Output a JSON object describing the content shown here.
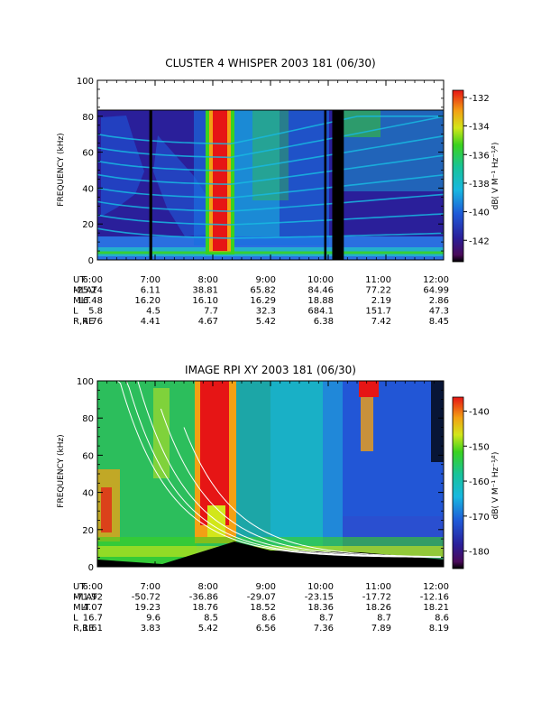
{
  "chart_data": [
    {
      "type": "heatmap",
      "title": "CLUSTER 4 WHISPER 2003 181 (06/30)",
      "ylabel": "FREQUENCY (kHz)",
      "ylim": [
        0,
        100
      ],
      "yticks": [
        "0",
        "20",
        "40",
        "60",
        "80",
        "100"
      ],
      "data_max_frequency": 80,
      "colorbar": {
        "label": "dB( V M⁻¹ Hz⁻¹⁄²)",
        "range": [
          -143.5,
          -131.5
        ],
        "ticks": [
          "-132",
          "-134",
          "-136",
          "-138",
          "-140",
          "-142"
        ],
        "tick_values": [
          -132,
          -134,
          -136,
          -138,
          -140,
          -142
        ]
      },
      "ephemeris_labels": [
        "UT",
        "MLAT",
        "MLT",
        "L",
        "R,RE"
      ],
      "ephemeris": [
        [
          "6:00",
          "-25.24",
          "16.48",
          "5.8",
          "4.76"
        ],
        [
          "7:00",
          "6.11",
          "16.20",
          "4.5",
          "4.41"
        ],
        [
          "8:00",
          "38.81",
          "16.10",
          "7.7",
          "4.67"
        ],
        [
          "9:00",
          "65.82",
          "16.29",
          "32.3",
          "5.42"
        ],
        [
          "10:00",
          "84.46",
          "18.88",
          "684.1",
          "6.38"
        ],
        [
          "11:00",
          "77.22",
          "2.19",
          "151.7",
          "7.42"
        ],
        [
          "12:00",
          "64.99",
          "2.86",
          "47.3",
          "8.45"
        ]
      ],
      "data_gaps_ut_hours": [
        [
          6.9,
          6.95
        ],
        [
          9.93,
          9.97
        ],
        [
          10.07,
          10.27
        ]
      ],
      "colors": {
        "background": "#2a1f9a",
        "frame": "#000000"
      }
    },
    {
      "type": "heatmap",
      "title": "IMAGE RPI XY 2003 181 (06/30)",
      "ylabel": "FREQUENCY (kHz)",
      "ylim": [
        0,
        100
      ],
      "yticks": [
        "0",
        "20",
        "40",
        "60",
        "80",
        "100"
      ],
      "colorbar": {
        "label": "dB( V M⁻¹ Hz⁻¹⁄²)",
        "range": [
          -185,
          -136
        ],
        "ticks": [
          "-140",
          "-150",
          "-160",
          "-170",
          "-180"
        ],
        "tick_values": [
          -140,
          -150,
          -160,
          -170,
          -180
        ]
      },
      "ephemeris_labels": [
        "UT",
        "MLAT",
        "MLT",
        "L",
        "R,RE"
      ],
      "ephemeris": [
        [
          "6:00",
          "-71.92",
          "4.07",
          "16.7",
          "1.61"
        ],
        [
          "7:00",
          "-50.72",
          "19.23",
          "9.6",
          "3.83"
        ],
        [
          "8:00",
          "-36.86",
          "18.76",
          "8.5",
          "5.42"
        ],
        [
          "9:00",
          "-29.07",
          "18.52",
          "8.6",
          "6.56"
        ],
        [
          "10:00",
          "-23.15",
          "18.36",
          "8.7",
          "7.36"
        ],
        [
          "11:00",
          "-17.72",
          "18.26",
          "8.7",
          "7.89"
        ],
        [
          "12:00",
          "-12.16",
          "18.21",
          "8.6",
          "8.19"
        ]
      ],
      "colors": {
        "background": "#2a4fd0",
        "frame": "#000000"
      }
    }
  ]
}
